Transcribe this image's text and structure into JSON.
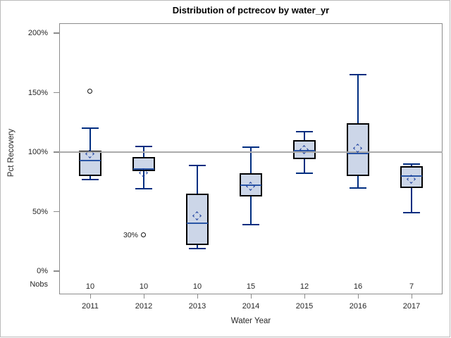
{
  "title": "Distribution of pctrecov by water_yr",
  "y_axis": {
    "label": "Pct Recovery",
    "nobs_label": "Nobs",
    "ticks": [
      "200%",
      "150%",
      "100%",
      "50%",
      "0%"
    ],
    "tick_values": [
      200,
      150,
      100,
      50,
      0
    ]
  },
  "x_axis": {
    "label": "Water Year"
  },
  "colors": {
    "box_fill": "#ccd6e8",
    "box_border": "#000000",
    "whisker": "#002d80",
    "median": "#2a55a5",
    "mean_marker": "#1b3f9e",
    "reference_line": "#ababab",
    "axis": "#8c8c8c",
    "frame": "#bbbbbb"
  },
  "chart_data": {
    "type": "boxplot",
    "title": "Distribution of pctrecov by water_yr",
    "xlabel": "Water Year",
    "ylabel": "Pct Recovery",
    "unit": "percent",
    "ylim": [
      0,
      208
    ],
    "yticks": [
      0,
      50,
      100,
      150,
      200
    ],
    "reference_line": 100,
    "grid": false,
    "categories": [
      "2011",
      "2012",
      "2013",
      "2014",
      "2015",
      "2016",
      "2017"
    ],
    "nobs": [
      10,
      10,
      10,
      15,
      12,
      16,
      7
    ],
    "series": [
      {
        "year": "2011",
        "nobs": 10,
        "low": 77,
        "q1": 80,
        "median": 93,
        "q3": 101,
        "high": 120,
        "mean": 98,
        "outliers": [
          {
            "value": 151,
            "label": ""
          }
        ]
      },
      {
        "year": "2012",
        "nobs": 10,
        "low": 69,
        "q1": 84,
        "median": 86,
        "q3": 96,
        "high": 105,
        "mean": 82,
        "outliers": [
          {
            "value": 30,
            "label": "30%"
          }
        ]
      },
      {
        "year": "2013",
        "nobs": 10,
        "low": 19,
        "q1": 22,
        "median": 40,
        "q3": 65,
        "high": 89,
        "mean": 46,
        "outliers": []
      },
      {
        "year": "2014",
        "nobs": 15,
        "low": 39,
        "q1": 63,
        "median": 72,
        "q3": 82,
        "high": 104,
        "mean": 71,
        "outliers": []
      },
      {
        "year": "2015",
        "nobs": 12,
        "low": 82,
        "q1": 94,
        "median": 101,
        "q3": 110,
        "high": 117,
        "mean": 102,
        "outliers": []
      },
      {
        "year": "2016",
        "nobs": 16,
        "low": 70,
        "q1": 80,
        "median": 99,
        "q3": 124,
        "high": 165,
        "mean": 103,
        "outliers": []
      },
      {
        "year": "2017",
        "nobs": 7,
        "low": 49,
        "q1": 70,
        "median": 80,
        "q3": 88,
        "high": 90,
        "mean": 77,
        "outliers": []
      }
    ]
  }
}
